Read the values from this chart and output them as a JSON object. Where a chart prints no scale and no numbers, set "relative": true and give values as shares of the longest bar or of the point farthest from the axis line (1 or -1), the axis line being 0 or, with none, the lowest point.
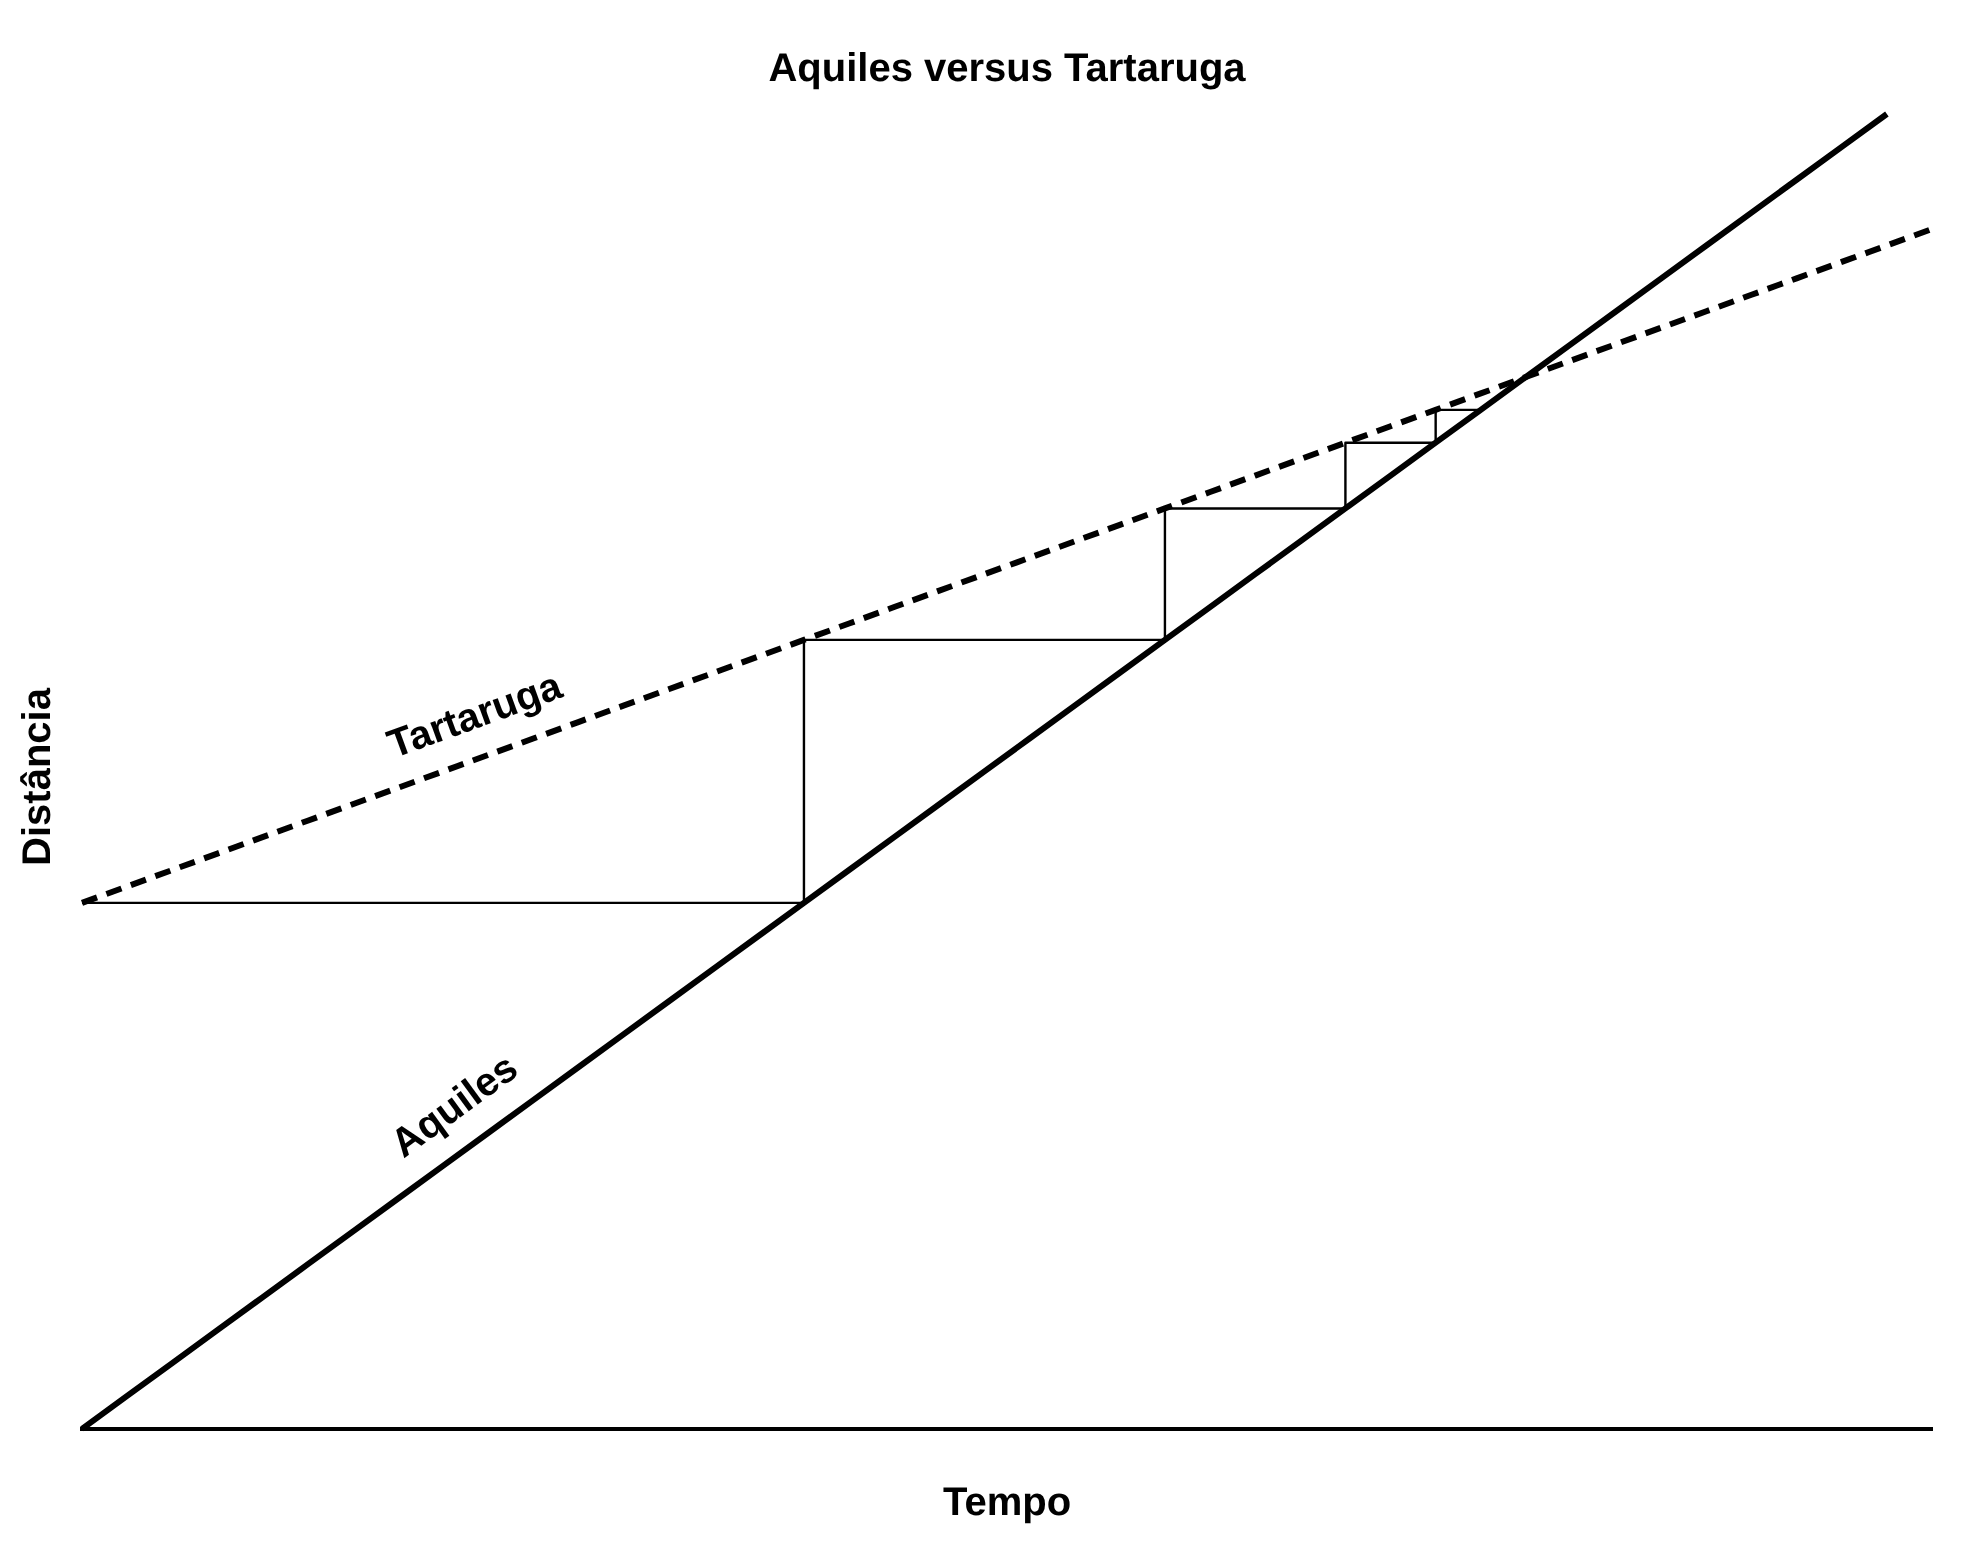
{
  "chart_data": {
    "type": "line",
    "title": "Aquiles versus Tartaruga",
    "xlabel": "Tempo",
    "ylabel": "Distância",
    "relative": true,
    "grid": false,
    "legend": false,
    "marker": "none",
    "categories": [
      null,
      null,
      null,
      null,
      null,
      null,
      null,
      null,
      null,
      null,
      null,
      null,
      null,
      null,
      null,
      null,
      null,
      null,
      null,
      null,
      null,
      null,
      null,
      null,
      null,
      null,
      null,
      null,
      null,
      null,
      null,
      null,
      null,
      null,
      null,
      null,
      null,
      null,
      null,
      null,
      null,
      null
    ],
    "series": [
      {
        "name": "Aquiles",
        "color": "#000000",
        "line_style": "solid",
        "values": [
          0,
          0.025,
          0.05,
          0.075,
          0.1,
          0.125,
          0.15,
          0.175,
          0.2,
          0.225,
          0.25,
          0.275,
          0.3,
          0.325,
          0.35,
          0.375,
          0.4,
          0.425,
          0.45,
          0.475,
          0.5,
          0.525,
          0.55,
          0.575,
          0.6,
          0.625,
          0.65,
          0.675,
          0.7,
          0.725,
          0.75,
          0.775,
          0.8,
          0.825,
          0.85,
          0.875,
          0.9,
          0.925,
          0.95,
          0.975,
          1,
          null
        ]
      },
      {
        "name": "Tartaruga",
        "color": "#000000",
        "line_style": "dashed",
        "values": [
          0.4,
          0.4125,
          0.425,
          0.4375,
          0.45,
          0.4625,
          0.475,
          0.4875,
          0.5,
          0.5125,
          0.525,
          0.5375,
          0.55,
          0.5625,
          0.575,
          0.5875,
          0.6,
          0.6125,
          0.625,
          0.6375,
          0.65,
          0.6625,
          0.675,
          0.6875,
          0.7,
          0.7125,
          0.725,
          0.7375,
          0.75,
          0.7625,
          0.775,
          0.7875,
          0.8,
          0.8125,
          0.825,
          0.8375,
          0.85,
          0.8625,
          0.875,
          0.8875,
          0.9,
          0.9125
        ]
      },
      {
        "type": "step",
        "color": "#000000",
        "line_style": "solid",
        "values": [
          0.4,
          null,
          null,
          null,
          null,
          null,
          null,
          null,
          null,
          null,
          null,
          null,
          null,
          null,
          null,
          null,
          0.6,
          null,
          null,
          null,
          null,
          null,
          null,
          null,
          0.7,
          null,
          null,
          null,
          0.75,
          null,
          0.775,
          0.775,
          null,
          null,
          null,
          null,
          null,
          null,
          null,
          null,
          null,
          null
        ]
      }
    ]
  }
}
